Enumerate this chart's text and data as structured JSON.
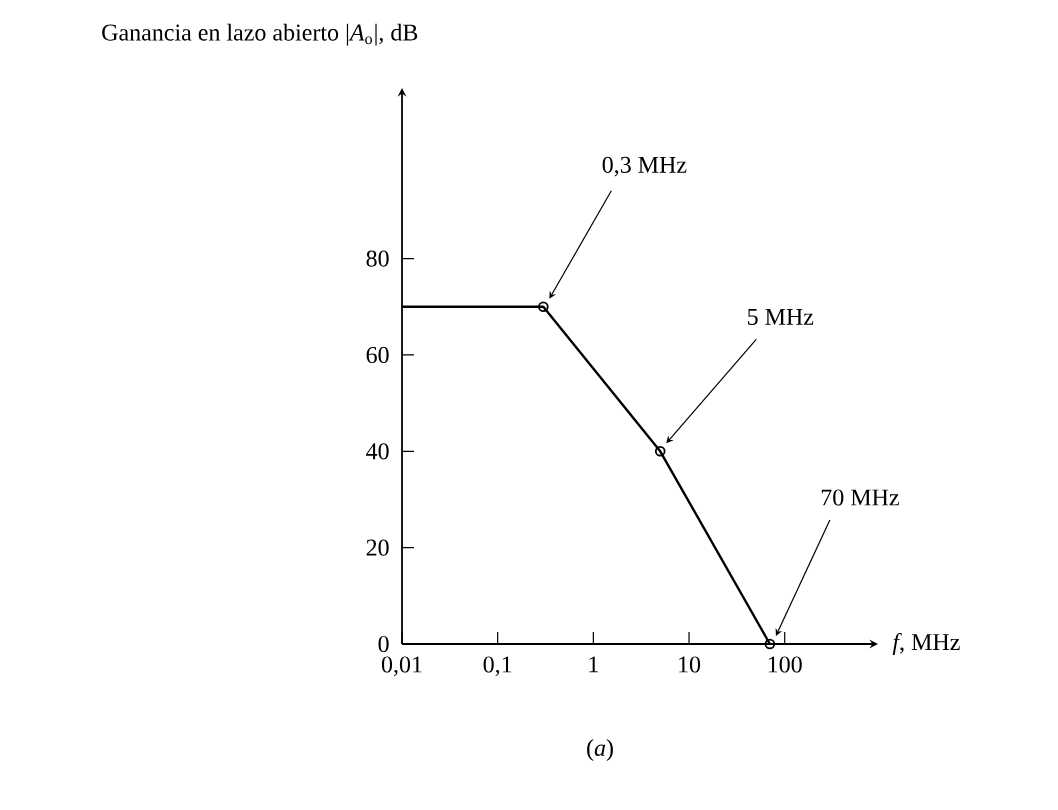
{
  "chart_data": {
    "type": "line",
    "ylabel": "Ganancia en lazo abierto |*A*$_{o}$|, dB",
    "xlabel": "*f*, MHz",
    "log": "x",
    "xlim": [
      0.01,
      900
    ],
    "ylim": [
      0,
      115
    ],
    "xticks": [
      {
        "value": 0.01,
        "label": "0,01"
      },
      {
        "value": 0.1,
        "label": "0,1"
      },
      1,
      10,
      100
    ],
    "yticks": [
      0,
      20,
      40,
      60,
      80
    ],
    "series": [
      {
        "x": [
          0.01,
          0.3,
          5,
          70
        ],
        "values": [
          70,
          70,
          40,
          0
        ],
        "color": "#000000",
        "marker": "none"
      },
      {
        "type": "scatter",
        "x": [
          0.3,
          5,
          70
        ],
        "values": [
          70,
          40,
          0
        ],
        "color": "#000000",
        "marker": "circle"
      }
    ],
    "annotations": [
      {
        "text": "0,3 MHz",
        "x": 0.3,
        "y": 70
      },
      {
        "text": "5 MHz",
        "x": 5,
        "y": 40
      },
      {
        "text": "70 MHz",
        "x": 70,
        "y": 0
      },
      "(*a*)"
    ]
  }
}
